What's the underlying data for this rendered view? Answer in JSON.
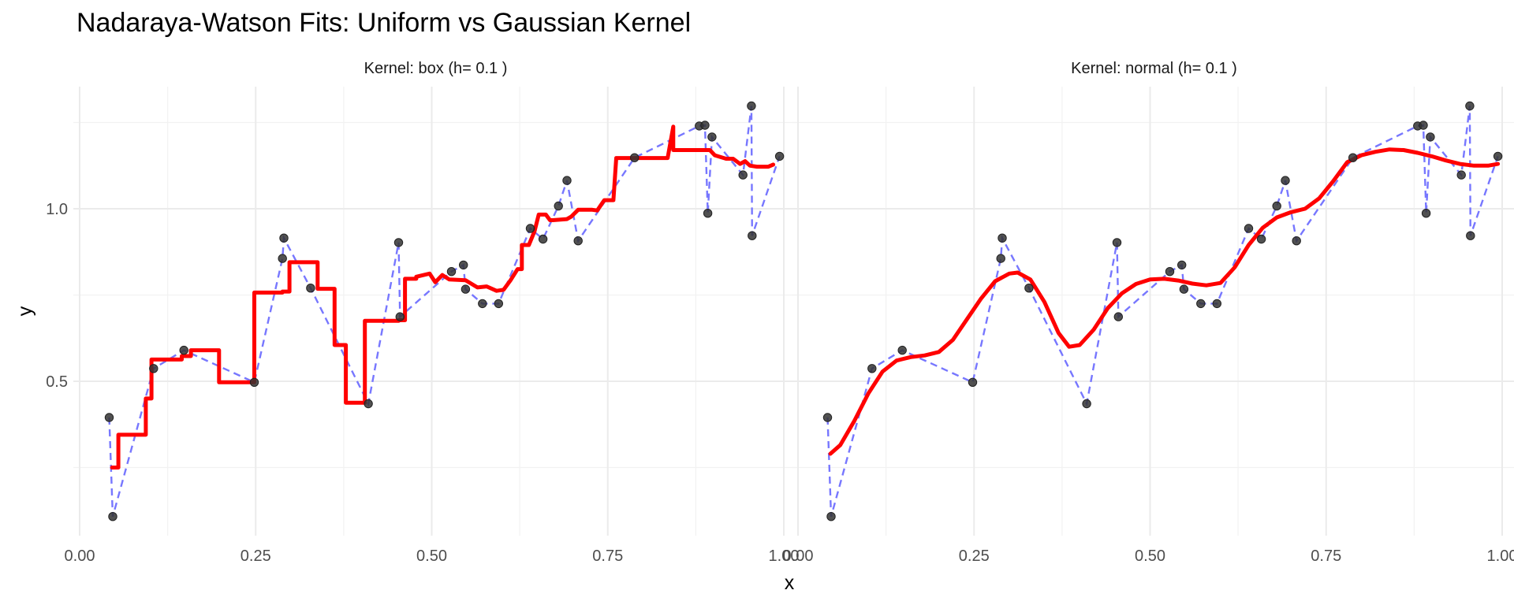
{
  "chart_data": {
    "type": "line",
    "title": "Nadaraya-Watson Fits: Uniform vs Gaussian Kernel",
    "xlabel": "x",
    "ylabel": "y",
    "xlim": [
      0.0,
      1.0
    ],
    "ylim": [
      0.1,
      1.3
    ],
    "x_ticks": [
      0.0,
      0.25,
      0.5,
      0.75,
      1.0
    ],
    "x_tick_labels": [
      "0.00",
      "0.25",
      "0.50",
      "0.75",
      "1.00"
    ],
    "y_ticks": [
      0.5,
      1.0
    ],
    "y_tick_labels": [
      "0.5",
      "1.0"
    ],
    "grid": true,
    "colors": {
      "points": "#333333",
      "connector": "#7777ff",
      "fit": "#ff0000"
    },
    "observations": {
      "x": [
        0.042,
        0.047,
        0.105,
        0.148,
        0.248,
        0.288,
        0.29,
        0.328,
        0.41,
        0.453,
        0.455,
        0.528,
        0.545,
        0.548,
        0.572,
        0.595,
        0.64,
        0.658,
        0.68,
        0.692,
        0.708,
        0.788,
        0.88,
        0.888,
        0.892,
        0.898,
        0.942,
        0.954,
        0.955,
        0.994
      ],
      "y": [
        0.395,
        0.108,
        0.537,
        0.59,
        0.497,
        0.856,
        0.915,
        0.77,
        0.435,
        0.902,
        0.687,
        0.818,
        0.837,
        0.767,
        0.725,
        0.725,
        0.943,
        0.912,
        1.008,
        1.082,
        0.907,
        1.148,
        1.24,
        1.242,
        0.987,
        1.208,
        1.098,
        1.298,
        0.922,
        1.152
      ]
    },
    "panels": [
      {
        "strip_label": "Kernel: box (h= 0.1 )",
        "kernel": "box",
        "fit_x": [
          0.046,
          0.055,
          0.055,
          0.094,
          0.094,
          0.102,
          0.102,
          0.145,
          0.145,
          0.158,
          0.158,
          0.198,
          0.198,
          0.208,
          0.208,
          0.238,
          0.238,
          0.248,
          0.248,
          0.288,
          0.288,
          0.298,
          0.298,
          0.333,
          0.333,
          0.338,
          0.338,
          0.348,
          0.348,
          0.362,
          0.362,
          0.378,
          0.378,
          0.398,
          0.398,
          0.405,
          0.405,
          0.453,
          0.453,
          0.462,
          0.462,
          0.478,
          0.478,
          0.497,
          0.505,
          0.515,
          0.525,
          0.548,
          0.565,
          0.578,
          0.592,
          0.602,
          0.612,
          0.622,
          0.628,
          0.628,
          0.638,
          0.646,
          0.652,
          0.662,
          0.668,
          0.672,
          0.692,
          0.698,
          0.708,
          0.728,
          0.735,
          0.745,
          0.758,
          0.762,
          0.765,
          0.828,
          0.835,
          0.843,
          0.843,
          0.858,
          0.878,
          0.885,
          0.895,
          0.902,
          0.918,
          0.928,
          0.938,
          0.945,
          0.952,
          0.962,
          0.978,
          0.985
        ],
        "fit_y": [
          0.25,
          0.25,
          0.345,
          0.345,
          0.45,
          0.45,
          0.563,
          0.563,
          0.573,
          0.573,
          0.59,
          0.59,
          0.497,
          0.497,
          0.497,
          0.497,
          0.497,
          0.497,
          0.757,
          0.757,
          0.76,
          0.76,
          0.845,
          0.845,
          0.845,
          0.845,
          0.768,
          0.768,
          0.768,
          0.768,
          0.605,
          0.605,
          0.438,
          0.438,
          0.438,
          0.438,
          0.675,
          0.675,
          0.677,
          0.677,
          0.797,
          0.797,
          0.803,
          0.812,
          0.787,
          0.808,
          0.795,
          0.793,
          0.772,
          0.775,
          0.762,
          0.765,
          0.793,
          0.825,
          0.825,
          0.895,
          0.895,
          0.935,
          0.983,
          0.983,
          0.967,
          0.967,
          0.97,
          0.977,
          0.997,
          0.997,
          0.995,
          1.025,
          1.025,
          1.147,
          1.147,
          1.147,
          1.147,
          1.238,
          1.17,
          1.17,
          1.17,
          1.17,
          1.17,
          1.155,
          1.145,
          1.145,
          1.13,
          1.138,
          1.125,
          1.122,
          1.122,
          1.128
        ]
      },
      {
        "strip_label": "Kernel: normal (h= 0.1 )",
        "kernel": "normal",
        "fit_x": [
          0.046,
          0.06,
          0.08,
          0.1,
          0.12,
          0.14,
          0.16,
          0.18,
          0.2,
          0.22,
          0.24,
          0.26,
          0.28,
          0.3,
          0.312,
          0.33,
          0.35,
          0.37,
          0.385,
          0.4,
          0.42,
          0.44,
          0.46,
          0.48,
          0.5,
          0.52,
          0.54,
          0.56,
          0.58,
          0.6,
          0.62,
          0.64,
          0.66,
          0.68,
          0.7,
          0.72,
          0.74,
          0.76,
          0.78,
          0.8,
          0.82,
          0.84,
          0.86,
          0.88,
          0.9,
          0.92,
          0.94,
          0.96,
          0.98,
          0.994
        ],
        "fit_y": [
          0.29,
          0.315,
          0.385,
          0.465,
          0.528,
          0.56,
          0.57,
          0.575,
          0.585,
          0.62,
          0.68,
          0.74,
          0.79,
          0.812,
          0.815,
          0.795,
          0.73,
          0.64,
          0.6,
          0.605,
          0.65,
          0.712,
          0.755,
          0.782,
          0.795,
          0.797,
          0.792,
          0.783,
          0.778,
          0.785,
          0.83,
          0.895,
          0.945,
          0.975,
          0.99,
          1.0,
          1.03,
          1.08,
          1.135,
          1.155,
          1.165,
          1.172,
          1.17,
          1.162,
          1.152,
          1.14,
          1.13,
          1.125,
          1.125,
          1.13
        ]
      }
    ]
  }
}
